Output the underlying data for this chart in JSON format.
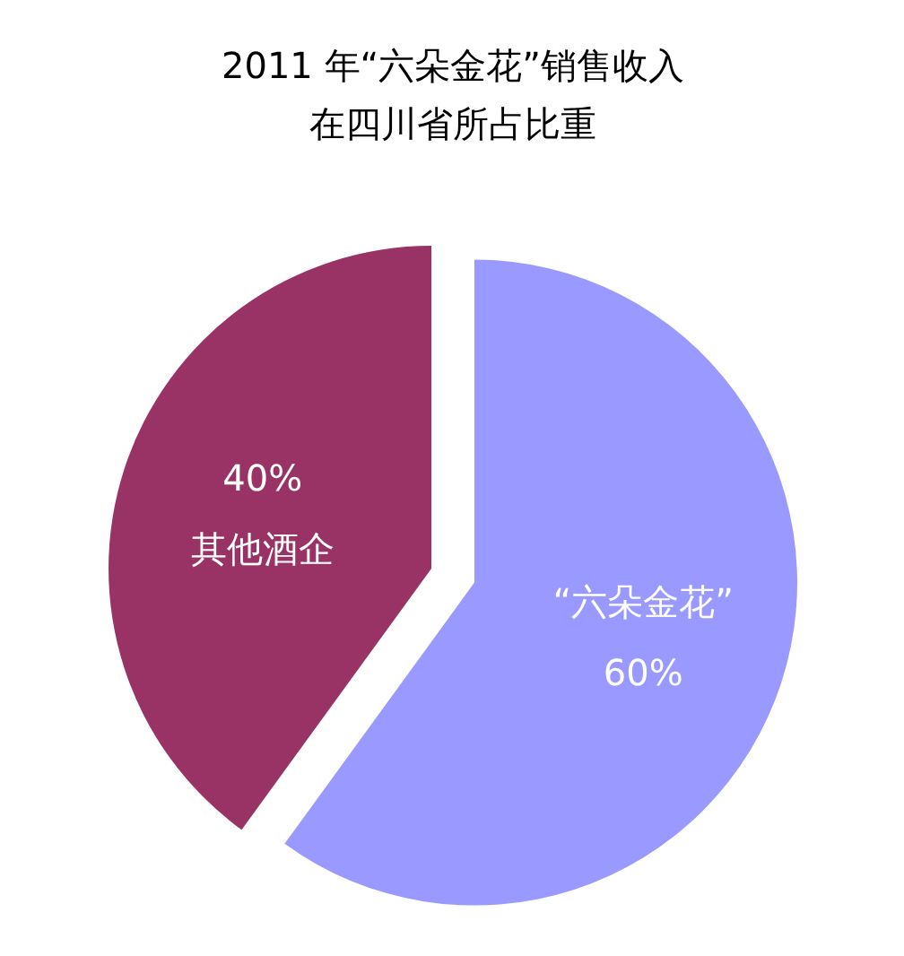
{
  "chart_data": {
    "type": "pie",
    "title": "2011 年“六朵金花”销售收入在四川省所占比重",
    "categories": [
      "“六朵金花”",
      "其他酒企"
    ],
    "values": [
      60,
      40
    ],
    "value_labels": [
      "60%",
      "40%"
    ],
    "colors": [
      "#9999ff",
      "#993366"
    ]
  }
}
